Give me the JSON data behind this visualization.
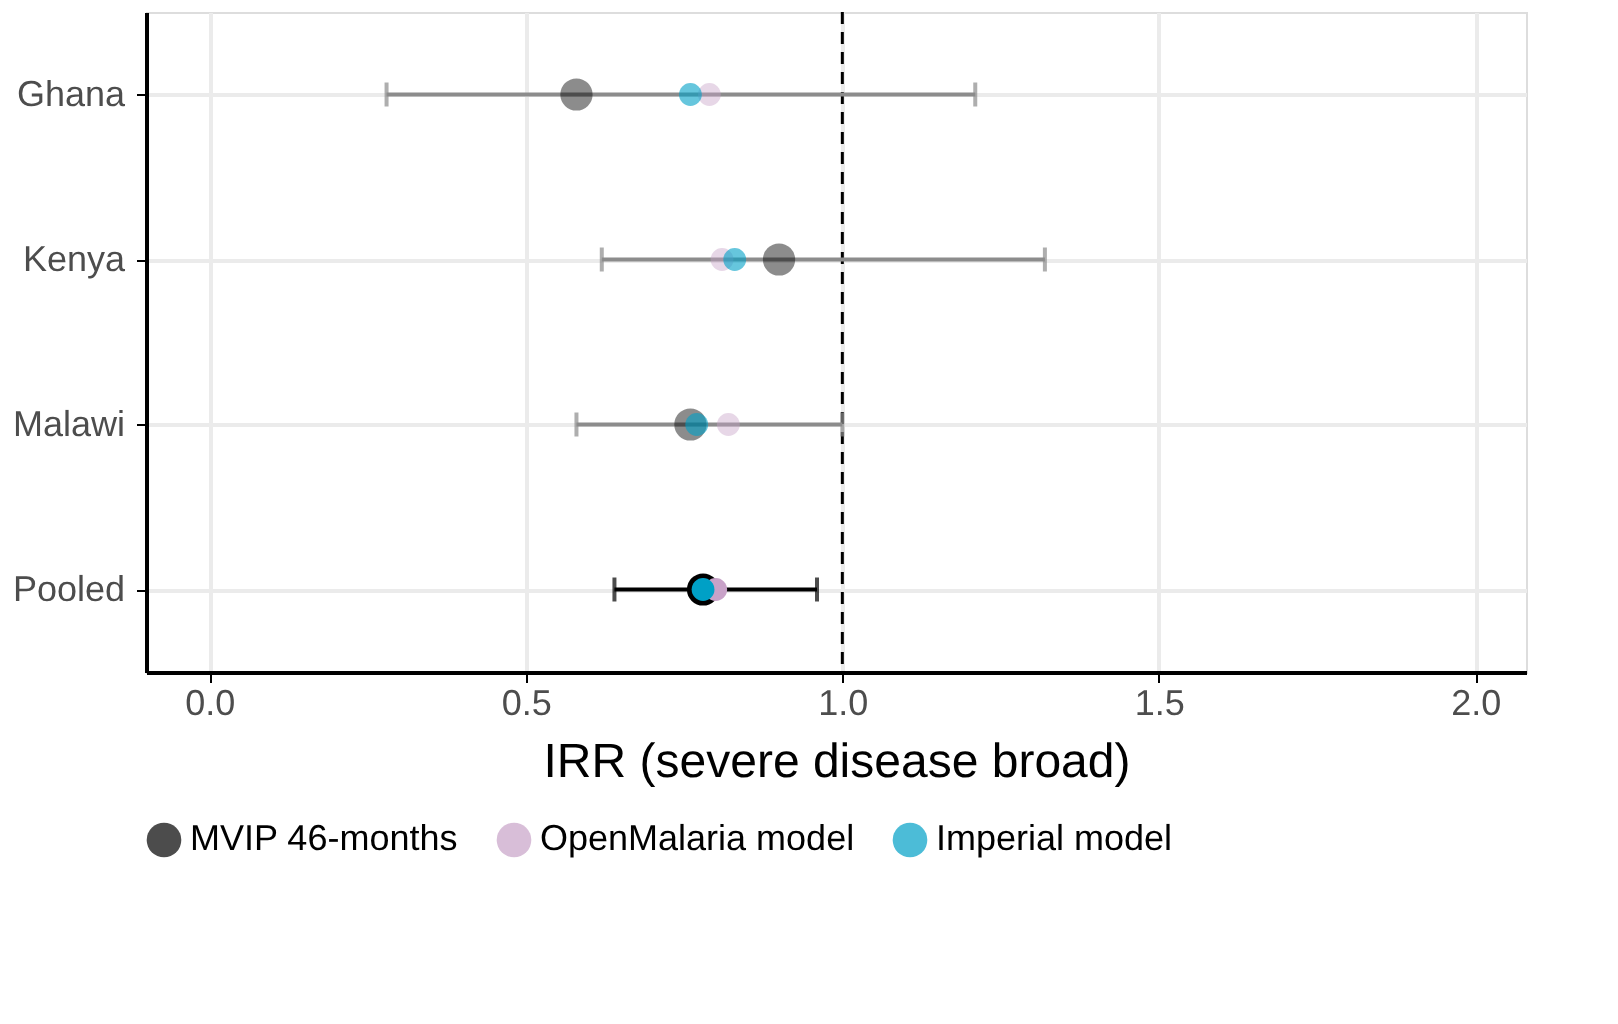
{
  "chart_data": {
    "type": "scatter",
    "orientation": "horizontal",
    "xlabel": "IRR (severe disease broad)",
    "categories": [
      "Ghana",
      "Kenya",
      "Malawi",
      "Pooled"
    ],
    "series": [
      {
        "name": "MVIP 46-months",
        "color": "#000000",
        "colors": [
          "#8c8c8c",
          "#8c8c8c",
          "#8c8c8c",
          "#000000"
        ],
        "values": [
          0.58,
          0.9,
          0.76,
          0.78
        ],
        "errors": [
          [
            0.28,
            1.21
          ],
          [
            0.62,
            1.32
          ],
          [
            0.58,
            1.0
          ],
          [
            0.64,
            0.96
          ]
        ]
      },
      {
        "name": "OpenMalaria model",
        "color": "#c8a2c8",
        "colors": [
          "#e8d6e8",
          "#e8d6e8",
          "#e8d6e8",
          "#c8a2c8"
        ],
        "values": [
          0.79,
          0.81,
          0.82,
          0.8
        ]
      },
      {
        "name": "Imperial model",
        "color": "#00a0c6",
        "colors": [
          "#66c6dd",
          "#66c6dd",
          "#66c6dd",
          "#00a0c6"
        ],
        "values": [
          0.76,
          0.83,
          0.77,
          0.78
        ]
      }
    ],
    "xlim": [
      -0.1,
      2.08
    ],
    "xticks": [
      {
        "value": 0,
        "label": "0.0"
      },
      0.5,
      {
        "value": 1,
        "label": "1.0"
      },
      1.5,
      {
        "value": 2,
        "label": "2.0"
      }
    ],
    "ref_lines": [
      {
        "axis": "x",
        "value": 1,
        "line_style": "dashed",
        "color": "#000000"
      }
    ],
    "grid": true,
    "legend": "bottom",
    "marker": "circle"
  }
}
